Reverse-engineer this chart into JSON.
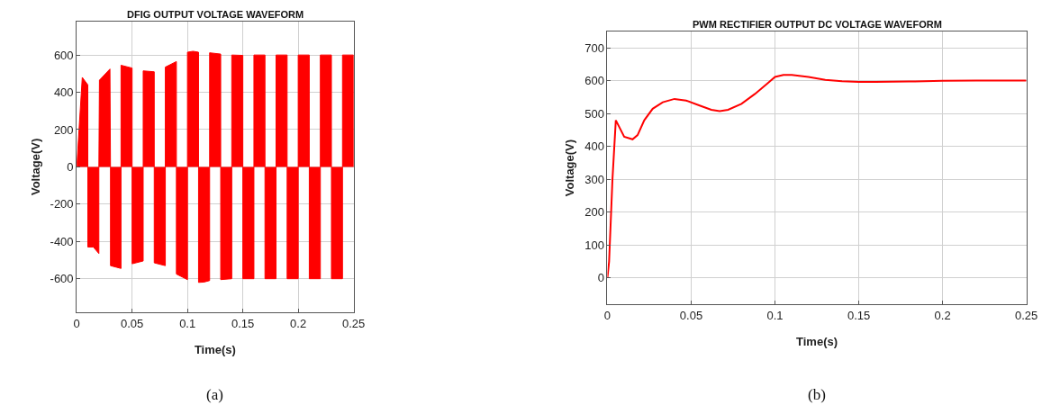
{
  "chart_data": [
    {
      "type": "area",
      "title": "DFIG OUTPUT VOLTAGE WAVEFORM",
      "xlabel": "Time(s)",
      "ylabel": "Voltage(V)",
      "annotations": [
        "(a)"
      ],
      "x": [
        0,
        0.005,
        0.01,
        0.01,
        0.01,
        0.015,
        0.02,
        0.02,
        0.0205,
        0.03,
        0.0305,
        0.0305,
        0.04,
        0.04,
        0.04,
        0.05,
        0.05,
        0.05,
        0.06,
        0.06,
        0.06,
        0.07,
        0.07,
        0.07,
        0.08,
        0.08,
        0.08,
        0.09,
        0.09,
        0.09,
        0.1,
        0.1,
        0.1,
        0.105,
        0.11,
        0.11,
        0.11,
        0.115,
        0.12,
        0.12,
        0.12,
        0.13,
        0.13,
        0.13,
        0.14,
        0.14,
        0.14,
        0.15,
        0.15,
        0.15,
        0.16,
        0.16,
        0.16,
        0.17,
        0.17,
        0.17,
        0.18,
        0.18,
        0.18,
        0.19,
        0.19,
        0.19,
        0.2,
        0.2,
        0.2,
        0.21,
        0.21,
        0.21,
        0.22,
        0.22,
        0.22,
        0.23,
        0.23,
        0.23,
        0.24,
        0.24,
        0.24,
        0.25,
        0.25
      ],
      "series": [
        {
          "color": "#ff0000",
          "values": [
            0,
            480,
            440,
            0,
            -430,
            -430,
            -465,
            0,
            465,
            525,
            0,
            -530,
            -545,
            0,
            545,
            530,
            0,
            -520,
            -505,
            0,
            515,
            510,
            0,
            -515,
            -530,
            0,
            535,
            565,
            0,
            -575,
            -605,
            0,
            615,
            620,
            615,
            0,
            -620,
            -618,
            -610,
            0,
            612,
            605,
            0,
            -605,
            -600,
            0,
            600,
            598,
            0,
            -600,
            -600,
            0,
            600,
            600,
            0,
            -600,
            -600,
            0,
            600,
            600,
            0,
            -600,
            -600,
            0,
            600,
            600,
            0,
            -600,
            -600,
            0,
            600,
            600,
            0,
            -600,
            -600,
            0,
            600,
            600,
            0
          ]
        }
      ],
      "xlim": [
        0,
        0.25
      ],
      "xticks": [
        0,
        0.05,
        0.1,
        0.15,
        0.2,
        0.25
      ],
      "ylim": [
        -780,
        780
      ],
      "yticks": [
        -600,
        -400,
        -200,
        0,
        200,
        400,
        600
      ],
      "grid": true
    },
    {
      "type": "line",
      "title": "PWM RECTIFIER OUTPUT DC VOLTAGE WAVEFORM",
      "xlabel": "Time(s)",
      "ylabel": "Voltage(V)",
      "annotations": [
        "(b)"
      ],
      "x": [
        0,
        0.001,
        0.003,
        0.005,
        0.007,
        0.01,
        0.015,
        0.018,
        0.022,
        0.027,
        0.033,
        0.04,
        0.047,
        0.055,
        0.062,
        0.067,
        0.072,
        0.08,
        0.088,
        0.095,
        0.1,
        0.105,
        0.11,
        0.12,
        0.13,
        0.14,
        0.15,
        0.16,
        0.18,
        0.2,
        0.22,
        0.25
      ],
      "series": [
        {
          "color": "#ff0000",
          "values": [
            0,
            50,
            300,
            480,
            460,
            430,
            422,
            435,
            480,
            515,
            535,
            545,
            540,
            525,
            512,
            508,
            512,
            530,
            560,
            590,
            612,
            618,
            618,
            612,
            603,
            599,
            597,
            597,
            598,
            600,
            601,
            601
          ]
        }
      ],
      "xlim": [
        0,
        0.25
      ],
      "xticks": [
        0,
        0.05,
        0.1,
        0.15,
        0.2,
        0.25
      ],
      "ylim": [
        -80,
        750
      ],
      "yticks": [
        0,
        100,
        200,
        300,
        400,
        500,
        600,
        700
      ],
      "grid": true,
      "line_style": "solid"
    }
  ]
}
